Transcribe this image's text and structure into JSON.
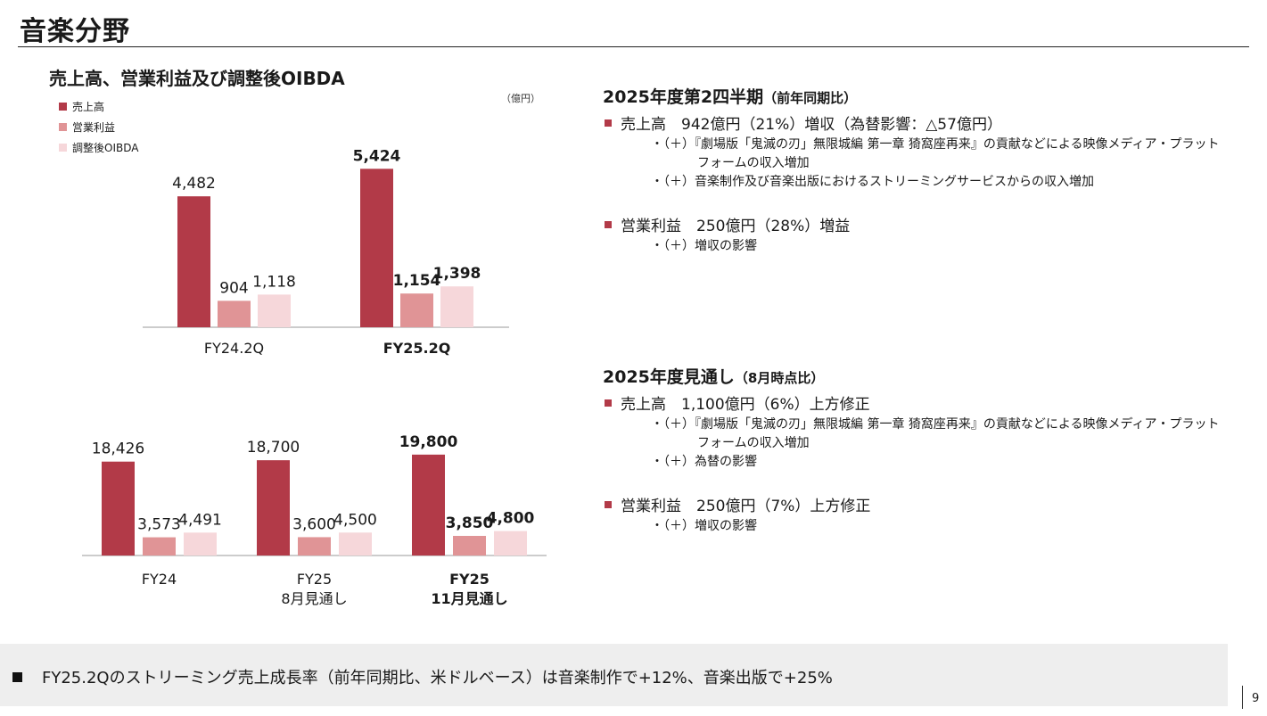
{
  "page": {
    "title": "音楽分野",
    "page_number": "9"
  },
  "colors": {
    "sales": "#b23a48",
    "operating_income": "#e09496",
    "adjusted_oibda": "#f6d7da",
    "bullet": "#b23a48"
  },
  "chart": {
    "title": "売上高、営業利益及び調整後OIBDA",
    "unit": "（億円）",
    "legend": [
      "売上高",
      "営業利益",
      "調整後OIBDA"
    ]
  },
  "chart_data": [
    {
      "type": "bar",
      "categories": [
        "FY24.2Q",
        "FY25.2Q"
      ],
      "series": [
        {
          "name": "売上高",
          "values": [
            4482,
            5424
          ]
        },
        {
          "name": "営業利益",
          "values": [
            904,
            1154
          ]
        },
        {
          "name": "調整後OIBDA",
          "values": [
            1118,
            1398
          ]
        }
      ],
      "value_labels": [
        [
          "4,482",
          "904",
          "1,118"
        ],
        [
          "5,424",
          "1,154",
          "1,398"
        ]
      ],
      "category_labels": [
        [
          "FY24.2Q"
        ],
        [
          "FY25.2Q"
        ]
      ],
      "bold_categories": [
        false,
        true
      ],
      "ylim": [
        0,
        5800
      ]
    },
    {
      "type": "bar",
      "categories": [
        "FY24",
        "FY25 8月見通し",
        "FY25 11月見通し"
      ],
      "series": [
        {
          "name": "売上高",
          "values": [
            18426,
            18700,
            19800
          ]
        },
        {
          "name": "営業利益",
          "values": [
            3573,
            3600,
            3850
          ]
        },
        {
          "name": "調整後OIBDA",
          "values": [
            4491,
            4500,
            4800
          ]
        }
      ],
      "value_labels": [
        [
          "18,426",
          "3,573",
          "4,491"
        ],
        [
          "18,700",
          "3,600",
          "4,500"
        ],
        [
          "19,800",
          "3,850",
          "4,800"
        ]
      ],
      "category_labels": [
        [
          "FY24"
        ],
        [
          "FY25",
          "8月見通し"
        ],
        [
          "FY25",
          "11月見通し"
        ]
      ],
      "bold_categories": [
        false,
        false,
        true
      ],
      "ylim": [
        0,
        21000
      ]
    }
  ],
  "q2": {
    "heading": "2025年度第2四半期",
    "heading_sub": "（前年同期比）",
    "sales": {
      "text": "売上高　942億円（21%）増収（為替影響：△57億円）",
      "details": [
        {
          "line1": "・（＋）『劇場版「鬼滅の刃」無限城編 第一章 猗窩座再来』の貢献などによる映像メディア・プラット",
          "line2": "フォームの収入増加"
        },
        {
          "line1": "・（＋）音楽制作及び音楽出版におけるストリーミングサービスからの収入増加",
          "line2": ""
        }
      ]
    },
    "op": {
      "text": "営業利益　250億円（28%）増益",
      "details": [
        {
          "line1": "・（＋）増収の影響",
          "line2": ""
        }
      ]
    }
  },
  "outlook": {
    "heading": "2025年度見通し",
    "heading_sub": "（8月時点比）",
    "sales": {
      "text": "売上高　1,100億円（6%）上方修正",
      "details": [
        {
          "line1": "・（＋）『劇場版「鬼滅の刃」無限城編 第一章 猗窩座再来』の貢献などによる映像メディア・プラット",
          "line2": "フォームの収入増加"
        },
        {
          "line1": "・（＋）為替の影響",
          "line2": ""
        }
      ]
    },
    "op": {
      "text": "営業利益　250億円（7%）上方修正",
      "details": [
        {
          "line1": "・（＋）増収の影響",
          "line2": ""
        }
      ]
    }
  },
  "footer": {
    "text": "FY25.2Qのストリーミング売上成長率（前年同期比、米ドルベース）は音楽制作で+12%、音楽出版で+25%"
  }
}
